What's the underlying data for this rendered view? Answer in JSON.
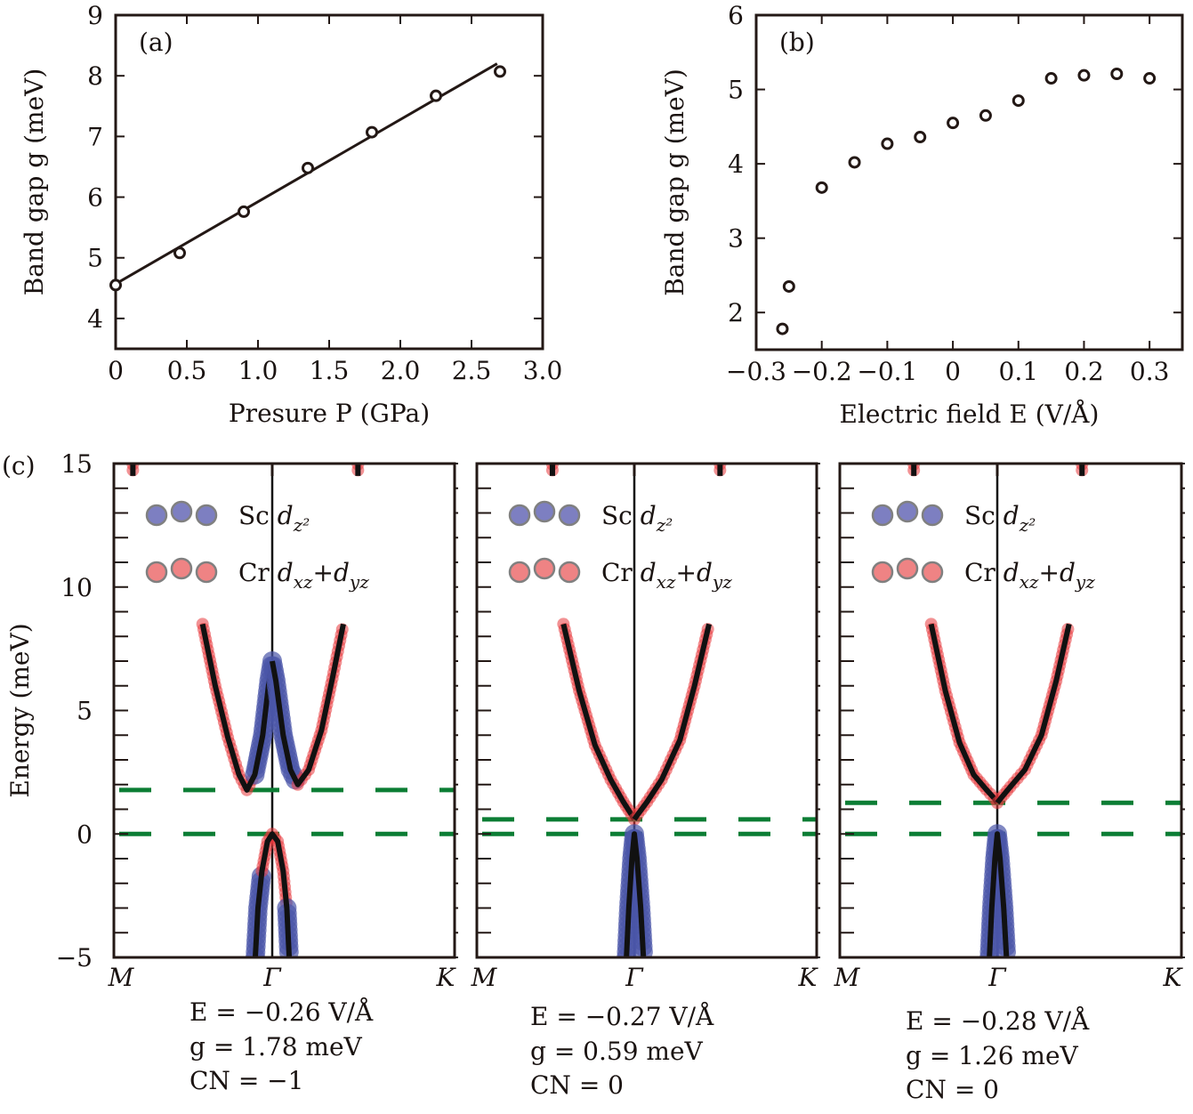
{
  "colors": {
    "axis": "#231815",
    "sc": "#4a55a8",
    "cr": "#e8383d",
    "legend_sc": "#7d7fc1",
    "legend_cr": "#ef8384",
    "fermi_line": "#0b7d34",
    "band_line": "#111111"
  },
  "chart_data": [
    {
      "panel": "(a)",
      "type": "scatter",
      "xlabel": "Presure P (GPa)",
      "ylabel": "Band gap g (meV)",
      "xlim": [
        0,
        3.0
      ],
      "ylim": [
        3.5,
        9
      ],
      "xticks": [
        "0",
        "0.5",
        "1.0",
        "1.5",
        "2.0",
        "2.5",
        "3.0"
      ],
      "xtick_values": [
        0,
        0.5,
        1.0,
        1.5,
        2.0,
        2.5,
        3.0
      ],
      "yticks": [
        "4",
        "5",
        "6",
        "7",
        "8",
        "9"
      ],
      "ytick_values": [
        4,
        5,
        6,
        7,
        8,
        9
      ],
      "points": {
        "x": [
          0,
          0.45,
          0.9,
          1.35,
          1.8,
          2.25,
          2.7
        ],
        "y": [
          4.55,
          5.08,
          5.76,
          6.48,
          7.07,
          7.67,
          8.07
        ]
      },
      "fit_line": {
        "x": [
          0,
          2.68
        ],
        "y": [
          4.57,
          8.2
        ]
      },
      "grid": false
    },
    {
      "panel": "(b)",
      "type": "scatter",
      "xlabel": "Electric field E (V/Å)",
      "ylabel": "Band gap g (meV)",
      "xlim": [
        -0.3,
        0.35
      ],
      "ylim": [
        1.5,
        6
      ],
      "xticks": [
        "−0.3",
        "−0.2",
        "−0.1",
        "0",
        "0.1",
        "0.2",
        "0.3"
      ],
      "xtick_values": [
        -0.3,
        -0.2,
        -0.1,
        0,
        0.1,
        0.2,
        0.3
      ],
      "yticks": [
        "2",
        "3",
        "4",
        "5",
        "6"
      ],
      "ytick_values": [
        2,
        3,
        4,
        5,
        6
      ],
      "points": {
        "x": [
          -0.26,
          -0.25,
          -0.2,
          -0.15,
          -0.1,
          -0.05,
          0,
          0.05,
          0.1,
          0.15,
          0.2,
          0.25,
          0.3
        ],
        "y": [
          1.78,
          2.35,
          3.68,
          4.02,
          4.27,
          4.36,
          4.55,
          4.65,
          4.85,
          5.15,
          5.19,
          5.21,
          5.15
        ]
      },
      "grid": false
    },
    {
      "panel": "(c)",
      "type": "line",
      "ylabel": "Energy (meV)",
      "ylim": [
        -5,
        15
      ],
      "yticks": [
        "15",
        "10",
        "5",
        "0",
        "−5"
      ],
      "ytick_values": [
        15,
        10,
        5,
        0,
        -5
      ],
      "kpath": [
        "M",
        "Γ",
        "K"
      ],
      "legend": [
        {
          "element": "Sc",
          "orbital": "d",
          "sub": "z²",
          "key": "sc"
        },
        {
          "element": "Cr",
          "orbital": "d",
          "sub": "xz",
          "plus": "+",
          "orbital2": "d",
          "sub2": "yz",
          "key": "cr"
        }
      ],
      "subpanels": [
        {
          "E_label": "E = −0.26 V/Å",
          "g_label": "g = 1.78 meV",
          "CN_label": "CN = −1",
          "fermi_levels": [
            0,
            1.78
          ],
          "bands": [
            [
              [
                -0.44,
                8.5,
                "cr"
              ],
              [
                -0.36,
                6.0,
                "cr"
              ],
              [
                -0.28,
                3.9,
                "cr"
              ],
              [
                -0.21,
                2.4,
                "cr"
              ],
              [
                -0.16,
                1.78,
                "cr"
              ],
              [
                -0.11,
                2.4,
                "sc"
              ],
              [
                -0.06,
                4.0,
                "sc"
              ],
              [
                -0.02,
                6.2,
                "sc"
              ],
              [
                0,
                7.0,
                "sc"
              ]
            ],
            [
              [
                0,
                7.0,
                "sc"
              ],
              [
                0.02,
                6.2,
                "sc"
              ],
              [
                0.06,
                4.0,
                "sc"
              ],
              [
                0.1,
                2.6,
                "sc"
              ],
              [
                0.14,
                2.0,
                "cr"
              ],
              [
                0.2,
                2.6,
                "cr"
              ],
              [
                0.27,
                4.2,
                "cr"
              ],
              [
                0.33,
                6.3,
                "cr"
              ],
              [
                0.39,
                8.5,
                "cr"
              ]
            ],
            [
              [
                -0.107,
                -5,
                "sc"
              ],
              [
                -0.09,
                -3,
                "sc"
              ],
              [
                -0.065,
                -1.5,
                "cr"
              ],
              [
                -0.03,
                -0.3,
                "cr"
              ],
              [
                0,
                0,
                "cr"
              ],
              [
                0.03,
                -0.3,
                "cr"
              ],
              [
                0.06,
                -1.5,
                "cr"
              ],
              [
                0.08,
                -3,
                "sc"
              ],
              [
                0.093,
                -5,
                "sc"
              ]
            ],
            [
              [
                -0.88,
                15.2,
                "cr"
              ],
              [
                -0.88,
                14.5,
                "cr"
              ]
            ],
            [
              [
                0.47,
                15.2,
                "cr"
              ],
              [
                0.47,
                14.5,
                "cr"
              ]
            ]
          ]
        },
        {
          "E_label": "E = −0.27 V/Å",
          "g_label": "g = 0.59 meV",
          "CN_label": "CN = 0",
          "fermi_levels": [
            0,
            0.59
          ],
          "bands": [
            [
              [
                -0.45,
                8.5,
                "cr"
              ],
              [
                -0.35,
                5.8,
                "cr"
              ],
              [
                -0.25,
                3.6,
                "cr"
              ],
              [
                -0.15,
                2.2,
                "cr"
              ],
              [
                -0.07,
                1.3,
                "cr"
              ],
              [
                -0.02,
                0.8,
                "cr"
              ],
              [
                0,
                0.59,
                "cr"
              ]
            ],
            [
              [
                0,
                0.59,
                "cr"
              ],
              [
                0.02,
                0.8,
                "cr"
              ],
              [
                0.07,
                1.3,
                "cr"
              ],
              [
                0.15,
                2.2,
                "cr"
              ],
              [
                0.25,
                3.8,
                "cr"
              ],
              [
                0.33,
                6.0,
                "cr"
              ],
              [
                0.41,
                8.5,
                "cr"
              ]
            ],
            [
              [
                -0.05,
                -5,
                "sc"
              ],
              [
                -0.035,
                -3,
                "sc"
              ],
              [
                -0.015,
                -1,
                "sc"
              ],
              [
                0,
                0,
                "sc"
              ],
              [
                0.015,
                -1,
                "sc"
              ],
              [
                0.035,
                -3,
                "sc"
              ],
              [
                0.05,
                -5,
                "sc"
              ]
            ],
            [
              [
                -0.52,
                15.2,
                "cr"
              ],
              [
                -0.52,
                14.5,
                "cr"
              ]
            ],
            [
              [
                0.47,
                15.2,
                "cr"
              ],
              [
                0.47,
                14.5,
                "cr"
              ]
            ]
          ]
        },
        {
          "E_label": "E = −0.28 V/Å",
          "g_label": "g = 1.26 meV",
          "CN_label": "CN = 0",
          "fermi_levels": [
            0,
            1.26
          ],
          "bands": [
            [
              [
                -0.42,
                8.5,
                "cr"
              ],
              [
                -0.33,
                5.8,
                "cr"
              ],
              [
                -0.24,
                3.7,
                "cr"
              ],
              [
                -0.15,
                2.4,
                "cr"
              ],
              [
                -0.07,
                1.8,
                "cr"
              ],
              [
                -0.02,
                1.45,
                "cr"
              ],
              [
                0,
                1.26,
                "cr"
              ]
            ],
            [
              [
                0,
                1.26,
                "cr"
              ],
              [
                0.02,
                1.45,
                "cr"
              ],
              [
                0.07,
                1.9,
                "cr"
              ],
              [
                0.15,
                2.6,
                "cr"
              ],
              [
                0.24,
                4.0,
                "cr"
              ],
              [
                0.32,
                6.2,
                "cr"
              ],
              [
                0.39,
                8.5,
                "cr"
              ]
            ],
            [
              [
                -0.05,
                -5,
                "sc"
              ],
              [
                -0.035,
                -3,
                "sc"
              ],
              [
                -0.015,
                -1,
                "sc"
              ],
              [
                0,
                0,
                "sc"
              ],
              [
                0.015,
                -1,
                "sc"
              ],
              [
                0.035,
                -3,
                "sc"
              ],
              [
                0.05,
                -5,
                "sc"
              ]
            ],
            [
              [
                -0.53,
                15.2,
                "cr"
              ],
              [
                -0.53,
                14.5,
                "cr"
              ]
            ],
            [
              [
                0.46,
                15.2,
                "cr"
              ],
              [
                0.46,
                14.5,
                "cr"
              ]
            ]
          ]
        }
      ]
    }
  ]
}
